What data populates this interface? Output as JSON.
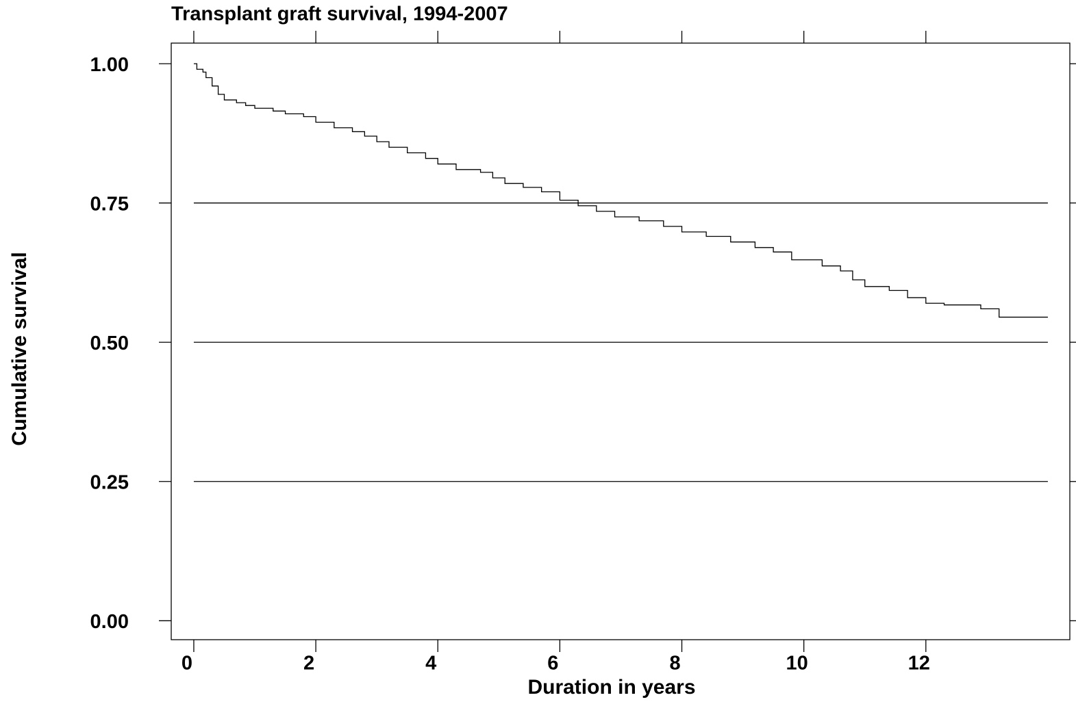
{
  "chart_data": {
    "type": "line",
    "step": "post",
    "title": "Transplant graft survival, 1994-2007",
    "x_label": "Duration in years",
    "y_label": "Cumulative survival",
    "x": [
      0,
      0.05,
      0.15,
      0.2,
      0.3,
      0.4,
      0.5,
      0.7,
      0.85,
      1.0,
      1.3,
      1.5,
      1.8,
      2.0,
      2.3,
      2.6,
      2.8,
      3.0,
      3.2,
      3.5,
      3.8,
      4.0,
      4.3,
      4.7,
      4.9,
      5.1,
      5.4,
      5.7,
      6.0,
      6.3,
      6.6,
      6.9,
      7.3,
      7.7,
      8.0,
      8.4,
      8.8,
      9.2,
      9.5,
      9.8,
      10.3,
      10.6,
      10.8,
      11.0,
      11.4,
      11.7,
      12.0,
      12.3,
      12.9,
      13.2,
      14.0
    ],
    "series": [
      {
        "name": "Survival",
        "color": "#000000",
        "values": [
          1.0,
          0.99,
          0.985,
          0.975,
          0.96,
          0.945,
          0.935,
          0.93,
          0.925,
          0.92,
          0.915,
          0.91,
          0.905,
          0.895,
          0.885,
          0.878,
          0.87,
          0.86,
          0.85,
          0.84,
          0.83,
          0.82,
          0.81,
          0.805,
          0.795,
          0.785,
          0.778,
          0.77,
          0.755,
          0.745,
          0.735,
          0.725,
          0.718,
          0.708,
          0.698,
          0.69,
          0.68,
          0.67,
          0.662,
          0.648,
          0.637,
          0.628,
          0.612,
          0.6,
          0.593,
          0.58,
          0.57,
          0.567,
          0.56,
          0.545,
          0.545
        ]
      }
    ],
    "xlim": [
      -0.37,
      14.36
    ],
    "ylim": [
      -0.034,
      1.037
    ],
    "xticks": [
      0,
      2,
      4,
      6,
      8,
      10,
      12
    ],
    "yticks": [
      {
        "value": 0,
        "label": "0.00"
      },
      {
        "value": 0.25,
        "label": "0.25"
      },
      {
        "value": 0.5,
        "label": "0.50"
      },
      {
        "value": 0.75,
        "label": "0.75"
      },
      {
        "value": 1,
        "label": "1.00"
      }
    ],
    "grid": true
  }
}
